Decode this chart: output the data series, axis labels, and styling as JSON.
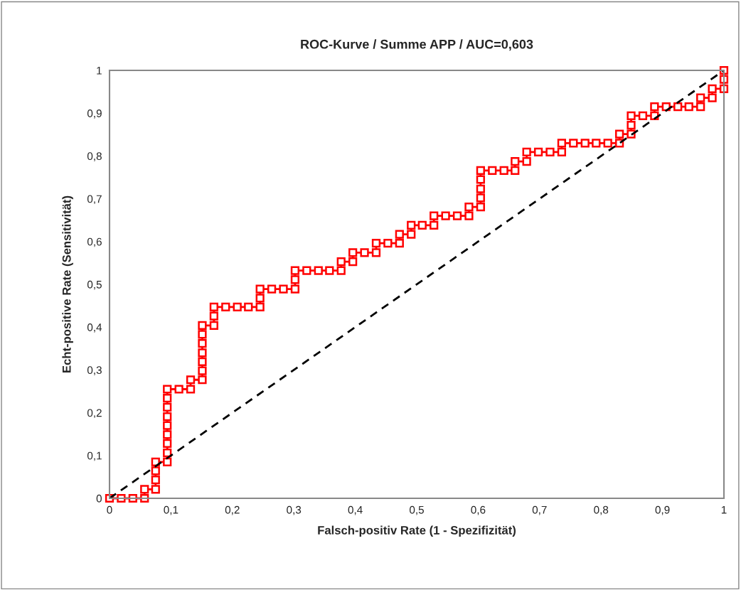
{
  "chart_data": {
    "type": "line",
    "title": "ROC-Kurve / Summe APP / AUC=0,603",
    "xlabel": "Falsch-positiv Rate (1 - Spezifizität)",
    "ylabel": "Echt-positive Rate (Sensitivität)",
    "series": [
      {
        "color": "#ff0000",
        "marker": "square",
        "line_style": "solid",
        "x": [
          0,
          0.019,
          0.038,
          0.057,
          0.057,
          0.075,
          0.075,
          0.075,
          0.075,
          0.094,
          0.094,
          0.094,
          0.094,
          0.094,
          0.094,
          0.094,
          0.094,
          0.094,
          0.113,
          0.132,
          0.132,
          0.151,
          0.151,
          0.151,
          0.151,
          0.151,
          0.151,
          0.151,
          0.17,
          0.17,
          0.17,
          0.189,
          0.208,
          0.226,
          0.245,
          0.245,
          0.245,
          0.264,
          0.283,
          0.302,
          0.302,
          0.302,
          0.321,
          0.34,
          0.358,
          0.377,
          0.377,
          0.396,
          0.396,
          0.415,
          0.434,
          0.434,
          0.453,
          0.472,
          0.472,
          0.491,
          0.491,
          0.509,
          0.528,
          0.528,
          0.547,
          0.566,
          0.585,
          0.585,
          0.604,
          0.604,
          0.604,
          0.604,
          0.604,
          0.623,
          0.642,
          0.66,
          0.66,
          0.679,
          0.679,
          0.698,
          0.717,
          0.736,
          0.736,
          0.755,
          0.774,
          0.792,
          0.811,
          0.83,
          0.83,
          0.849,
          0.849,
          0.849,
          0.868,
          0.887,
          0.887,
          0.906,
          0.925,
          0.943,
          0.962,
          0.962,
          0.981,
          0.981,
          1,
          1,
          1
        ],
        "values": [
          0,
          0,
          0,
          0,
          0.021,
          0.021,
          0.043,
          0.064,
          0.085,
          0.085,
          0.106,
          0.128,
          0.149,
          0.17,
          0.191,
          0.213,
          0.234,
          0.255,
          0.255,
          0.255,
          0.277,
          0.277,
          0.298,
          0.319,
          0.34,
          0.362,
          0.383,
          0.404,
          0.404,
          0.426,
          0.447,
          0.447,
          0.447,
          0.447,
          0.447,
          0.468,
          0.489,
          0.489,
          0.489,
          0.489,
          0.511,
          0.532,
          0.532,
          0.532,
          0.532,
          0.532,
          0.553,
          0.553,
          0.574,
          0.574,
          0.574,
          0.596,
          0.596,
          0.596,
          0.617,
          0.617,
          0.638,
          0.638,
          0.638,
          0.66,
          0.66,
          0.66,
          0.66,
          0.681,
          0.681,
          0.702,
          0.723,
          0.745,
          0.766,
          0.766,
          0.766,
          0.766,
          0.787,
          0.787,
          0.809,
          0.809,
          0.809,
          0.809,
          0.83,
          0.83,
          0.83,
          0.83,
          0.83,
          0.83,
          0.851,
          0.851,
          0.872,
          0.894,
          0.894,
          0.894,
          0.915,
          0.915,
          0.915,
          0.915,
          0.915,
          0.936,
          0.936,
          0.957,
          0.957,
          0.979,
          1
        ]
      },
      {
        "color": "#000000",
        "marker": "none",
        "line_style": "dashed",
        "x": [
          0,
          1
        ],
        "values": [
          0,
          1
        ]
      }
    ],
    "xlim": [
      0,
      1
    ],
    "ylim": [
      0,
      1
    ],
    "xticks": [
      0,
      {
        "value": 0.1,
        "label": "0,1"
      },
      {
        "value": 0.2,
        "label": "0,2"
      },
      {
        "value": 0.3,
        "label": "0,3"
      },
      {
        "value": 0.4,
        "label": "0,4"
      },
      {
        "value": 0.5,
        "label": "0,5"
      },
      {
        "value": 0.6,
        "label": "0,6"
      },
      {
        "value": 0.7,
        "label": "0,7"
      },
      {
        "value": 0.8,
        "label": "0,8"
      },
      {
        "value": 0.9,
        "label": "0,9"
      },
      1
    ],
    "yticks": [
      0,
      {
        "value": 0.1,
        "label": "0,1"
      },
      {
        "value": 0.2,
        "label": "0,2"
      },
      {
        "value": 0.3,
        "label": "0,3"
      },
      {
        "value": 0.4,
        "label": "0,4"
      },
      {
        "value": 0.5,
        "label": "0,5"
      },
      {
        "value": 0.6,
        "label": "0,6"
      },
      {
        "value": 0.7,
        "label": "0,7"
      },
      {
        "value": 0.8,
        "label": "0,8"
      },
      {
        "value": 0.9,
        "label": "0,9"
      },
      1
    ],
    "grid": false,
    "legend": false
  }
}
